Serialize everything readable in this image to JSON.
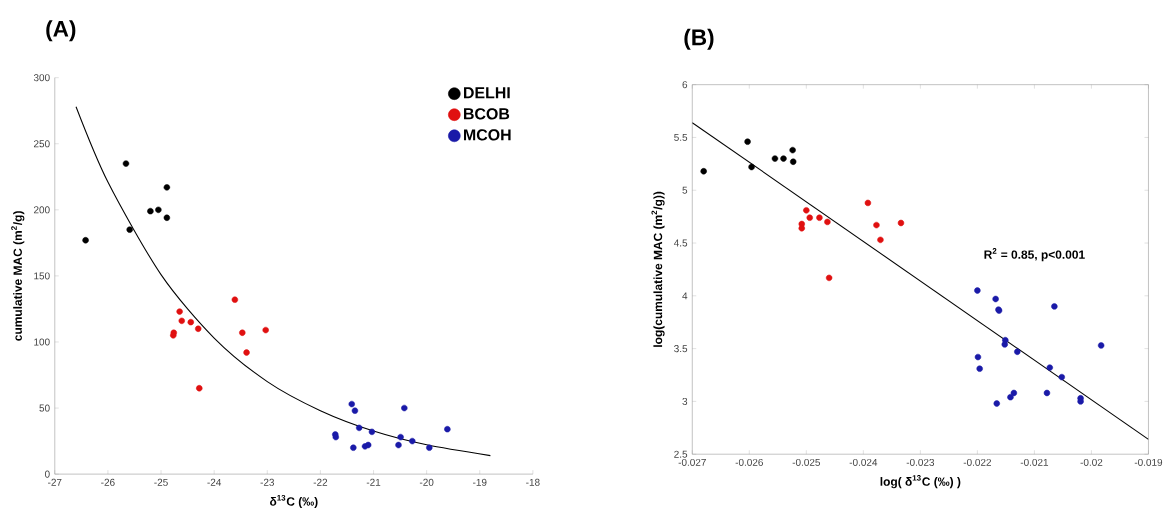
{
  "chart_data": [
    {
      "type": "scatter",
      "title": "(A)",
      "xlabel": "δ$^{13}$C (‰)",
      "ylabel": "cumulative MAC (m$^{2}$/g)",
      "xlim": [
        -27,
        -18
      ],
      "xticks": [
        -27,
        -26,
        -25,
        -24,
        -23,
        -22,
        -21,
        -20,
        -19,
        -18
      ],
      "ylim": [
        0,
        300
      ],
      "yticks": [
        0,
        50,
        100,
        150,
        200,
        250,
        300
      ],
      "legend": "top right",
      "marker": "circle",
      "series": [
        {
          "name": "DELHI",
          "color": "#000000",
          "x": [
            -26.42,
            -25.66,
            -25.59,
            -25.2,
            -25.05,
            -24.89,
            -24.89
          ],
          "values": [
            177,
            235,
            185,
            199,
            200,
            217,
            194
          ]
        },
        {
          "name": "BCOB",
          "color": "#e01010",
          "x": [
            -24.65,
            -24.61,
            -24.76,
            -24.77,
            -24.44,
            -24.3,
            -24.28,
            -23.61,
            -23.47,
            -23.39,
            -23.03
          ],
          "values": [
            123,
            116,
            107,
            105,
            115,
            110,
            65,
            132,
            107,
            92,
            109
          ]
        },
        {
          "name": "MCOH",
          "color": "#1a1aa8",
          "x": [
            -21.41,
            -21.35,
            -20.42,
            -21.72,
            -21.71,
            -21.27,
            -21.03,
            -21.38,
            -21.16,
            -21.1,
            -20.53,
            -20.49,
            -20.27,
            -19.95,
            -19.61
          ],
          "values": [
            53,
            48,
            50,
            30,
            28,
            35,
            32,
            20,
            21,
            22,
            22,
            28,
            25,
            20,
            34
          ]
        },
        {
          "type": "line",
          "marker": "none",
          "color": "#000000",
          "line_style": "solid",
          "x": [
            -26.6,
            -26,
            -25,
            -24,
            -23,
            -22,
            -21,
            -20,
            -18.8
          ],
          "values": [
            278,
            221,
            151,
            103,
            70,
            48,
            32.6,
            22.2,
            14
          ]
        }
      ]
    },
    {
      "type": "scatter",
      "title": "(B)",
      "xlabel": "log(   δ$^{13}$C (‰)    )",
      "ylabel": "log(cumulative MAC (m$^{2}$/g))",
      "xlim": [
        -0.027,
        -0.019
      ],
      "xticks": [
        -0.027,
        -0.026,
        -0.025,
        -0.024,
        -0.023,
        -0.022,
        -0.021,
        -0.02,
        -0.019
      ],
      "ylim": [
        2.5,
        6
      ],
      "yticks": [
        2.5,
        3,
        3.5,
        4,
        4.5,
        5,
        5.5,
        6
      ],
      "marker": "circle",
      "annotations": [
        "R$^{2}$ = 0.85, p<0.001"
      ],
      "series": [
        {
          "color": "#000000",
          "x": [
            -0.0268,
            -0.02603,
            -0.02596,
            -0.02555,
            -0.0254,
            -0.02524,
            -0.02523
          ],
          "values": [
            5.18,
            5.46,
            5.22,
            5.3,
            5.3,
            5.38,
            5.27
          ]
        },
        {
          "color": "#e01010",
          "x": [
            -0.02508,
            -0.02508,
            -0.025,
            -0.02494,
            -0.02477,
            -0.02463,
            -0.0246,
            -0.02392,
            -0.02377,
            -0.0237,
            -0.02334
          ],
          "values": [
            4.68,
            4.64,
            4.81,
            4.74,
            4.74,
            4.7,
            4.17,
            4.88,
            4.67,
            4.53,
            4.69
          ]
        },
        {
          "color": "#1a1aa8",
          "x": [
            -0.022,
            -0.02168,
            -0.02163,
            -0.02162,
            -0.02065,
            -0.02151,
            -0.02152,
            -0.0213,
            -0.02199,
            -0.02196,
            -0.02073,
            -0.02052,
            -0.01983,
            -0.02078,
            -0.02136,
            -0.02142,
            -0.02166,
            -0.02019,
            -0.02019
          ],
          "values": [
            4.05,
            3.97,
            3.87,
            3.86,
            3.9,
            3.58,
            3.54,
            3.47,
            3.42,
            3.31,
            3.32,
            3.23,
            3.53,
            3.08,
            3.08,
            3.04,
            2.98,
            3.03,
            3.0
          ]
        },
        {
          "type": "line",
          "marker": "none",
          "color": "#000000",
          "line_style": "solid",
          "x": [
            -0.027,
            -0.019
          ],
          "values": [
            5.64,
            2.64
          ]
        }
      ]
    }
  ]
}
